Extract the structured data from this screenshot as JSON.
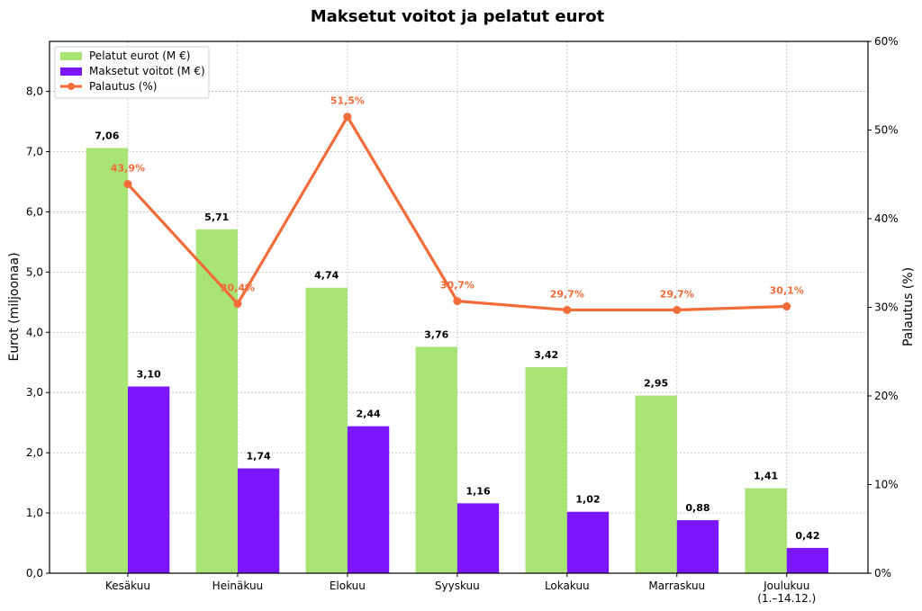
{
  "chart_data": {
    "type": "bar",
    "title": "Maksetut voitot ja pelatut eurot",
    "categories": [
      "Kesäkuu",
      "Heinäkuu",
      "Elokuu",
      "Syyskuu",
      "Lokakuu",
      "Marraskuu",
      "Joulukuu\n(1.–14.12.)"
    ],
    "series": [
      {
        "name": "Pelatut eurot (M €)",
        "type": "bar",
        "axis": "left",
        "color": "#a8e575",
        "values": [
          7.06,
          5.71,
          4.74,
          3.76,
          3.42,
          2.95,
          1.41
        ],
        "labels": [
          "7,06",
          "5,71",
          "4,74",
          "3,76",
          "3,42",
          "2,95",
          "1,41"
        ]
      },
      {
        "name": "Maksetut voitot (M €)",
        "type": "bar",
        "axis": "left",
        "color": "#7b16ff",
        "values": [
          3.1,
          1.74,
          2.44,
          1.16,
          1.02,
          0.88,
          0.42
        ],
        "labels": [
          "3,10",
          "1,74",
          "2,44",
          "1,16",
          "1,02",
          "0,88",
          "0,42"
        ]
      },
      {
        "name": "Palautus (%)",
        "type": "line",
        "axis": "right",
        "color": "#f26b38",
        "values": [
          43.9,
          30.4,
          51.5,
          30.7,
          29.7,
          29.7,
          30.1
        ],
        "labels": [
          "43,9%",
          "30,4%",
          "51,5%",
          "30,7%",
          "29,7%",
          "29,7%",
          "30,1%"
        ]
      }
    ],
    "ylabel": "Eurot (miljoonaa)",
    "ylim": [
      0,
      8.83
    ],
    "yticks": [
      "0,0",
      "1,0",
      "2,0",
      "3,0",
      "4,0",
      "5,0",
      "6,0",
      "7,0",
      "8,0"
    ],
    "y2label": "Palautus (%)",
    "y2lim": [
      0,
      60
    ],
    "y2ticks": [
      "0%",
      "10%",
      "20%",
      "30%",
      "40%",
      "50%",
      "60%"
    ],
    "grid": true,
    "legend": "top-left"
  }
}
